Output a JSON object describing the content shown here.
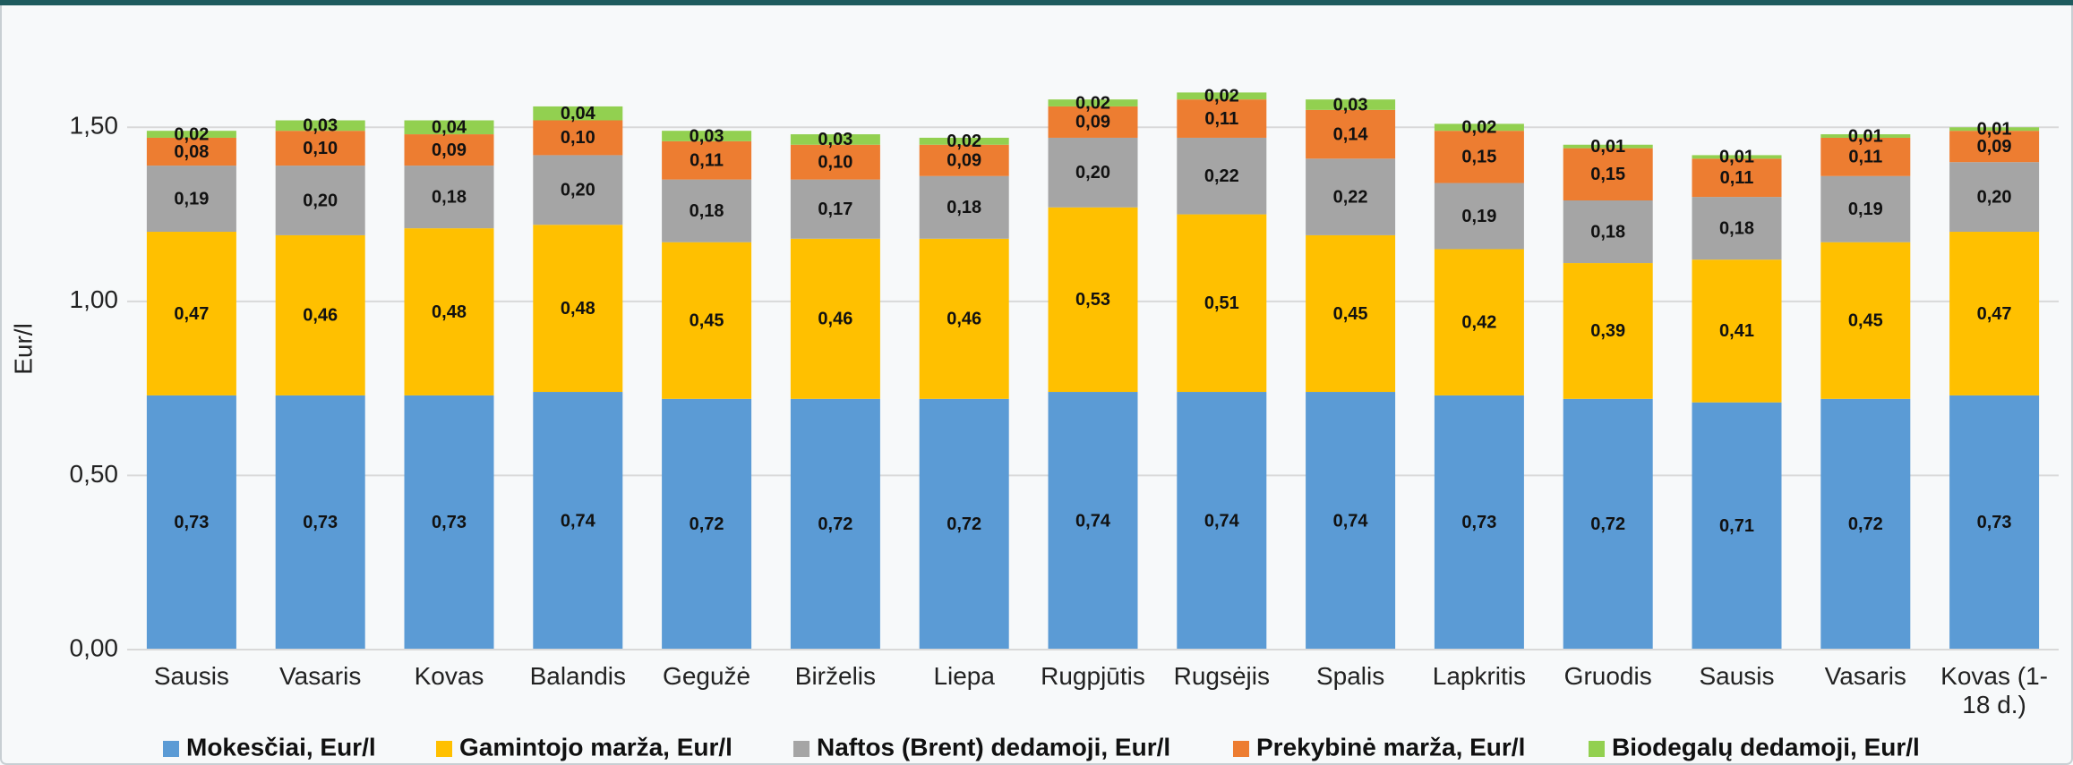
{
  "chart_data": {
    "type": "stacked_bar",
    "y_label": "Eur/l",
    "categories": [
      "Sausis",
      "Vasaris",
      "Kovas",
      "Balandis",
      "Gegužė",
      "Birželis",
      "Liepa",
      "Rugpjūtis",
      "Rugsėjis",
      "Spalis",
      "Lapkritis",
      "Gruodis",
      "Sausis",
      "Vasaris",
      "Kovas (1-18 d.)"
    ],
    "series": [
      {
        "name": "Mokesčiai, Eur/l",
        "color": "#5b9bd5",
        "values": [
          0.73,
          0.73,
          0.73,
          0.74,
          0.72,
          0.72,
          0.72,
          0.74,
          0.74,
          0.74,
          0.73,
          0.72,
          0.71,
          0.72,
          0.73
        ],
        "value_labels": [
          "0,73",
          "0,73",
          "0,73",
          "0,74",
          "0,72",
          "0,72",
          "0,72",
          "0,74",
          "0,74",
          "0,74",
          "0,73",
          "0,72",
          "0,71",
          "0,72",
          "0,73"
        ]
      },
      {
        "name": "Gamintojo marža, Eur/l",
        "color": "#ffc000",
        "values": [
          0.47,
          0.46,
          0.48,
          0.48,
          0.45,
          0.46,
          0.46,
          0.53,
          0.51,
          0.45,
          0.42,
          0.39,
          0.41,
          0.45,
          0.47
        ],
        "value_labels": [
          "0,47",
          "0,46",
          "0,48",
          "0,48",
          "0,45",
          "0,46",
          "0,46",
          "0,53",
          "0,51",
          "0,45",
          "0,42",
          "0,39",
          "0,41",
          "0,45",
          "0,47"
        ]
      },
      {
        "name": "Naftos (Brent) dedamoji, Eur/l",
        "color": "#a5a5a5",
        "values": [
          0.19,
          0.2,
          0.18,
          0.2,
          0.18,
          0.17,
          0.18,
          0.2,
          0.22,
          0.22,
          0.19,
          0.18,
          0.18,
          0.19,
          0.2
        ],
        "value_labels": [
          "0,19",
          "0,20",
          "0,18",
          "0,20",
          "0,18",
          "0,17",
          "0,18",
          "0,20",
          "0,22",
          "0,22",
          "0,19",
          "0,18",
          "0,18",
          "0,19",
          "0,20"
        ]
      },
      {
        "name": "Prekybinė marža, Eur/l",
        "color": "#ed7d31",
        "values": [
          0.08,
          0.1,
          0.09,
          0.1,
          0.11,
          0.1,
          0.09,
          0.09,
          0.11,
          0.14,
          0.15,
          0.15,
          0.11,
          0.11,
          0.09
        ],
        "value_labels": [
          "0,08",
          "0,10",
          "0,09",
          "0,10",
          "0,11",
          "0,10",
          "0,09",
          "0,09",
          "0,11",
          "0,14",
          "0,15",
          "0,15",
          "0,11",
          "0,11",
          "0,09"
        ]
      },
      {
        "name": "Biodegalų dedamoji, Eur/l",
        "color": "#92d050",
        "values": [
          0.02,
          0.03,
          0.04,
          0.04,
          0.03,
          0.03,
          0.02,
          0.02,
          0.02,
          0.03,
          0.02,
          0.01,
          0.01,
          0.01,
          0.01
        ],
        "value_labels": [
          "0,02",
          "0,03",
          "0,04",
          "0,04",
          "0,03",
          "0,03",
          "0,02",
          "0,02",
          "0,02",
          "0,03",
          "0,02",
          "0,01",
          "0,01",
          "0,01",
          "0,01"
        ]
      }
    ],
    "ylim": [
      0,
      1.75
    ],
    "yticks": [
      {
        "value": 0,
        "label": "0,00"
      },
      {
        "value": 0.5,
        "label": "0,50"
      },
      {
        "value": 1,
        "label": "1,00"
      },
      {
        "value": 1.5,
        "label": "1,50"
      }
    ],
    "grid": true,
    "legend": "bottom"
  }
}
